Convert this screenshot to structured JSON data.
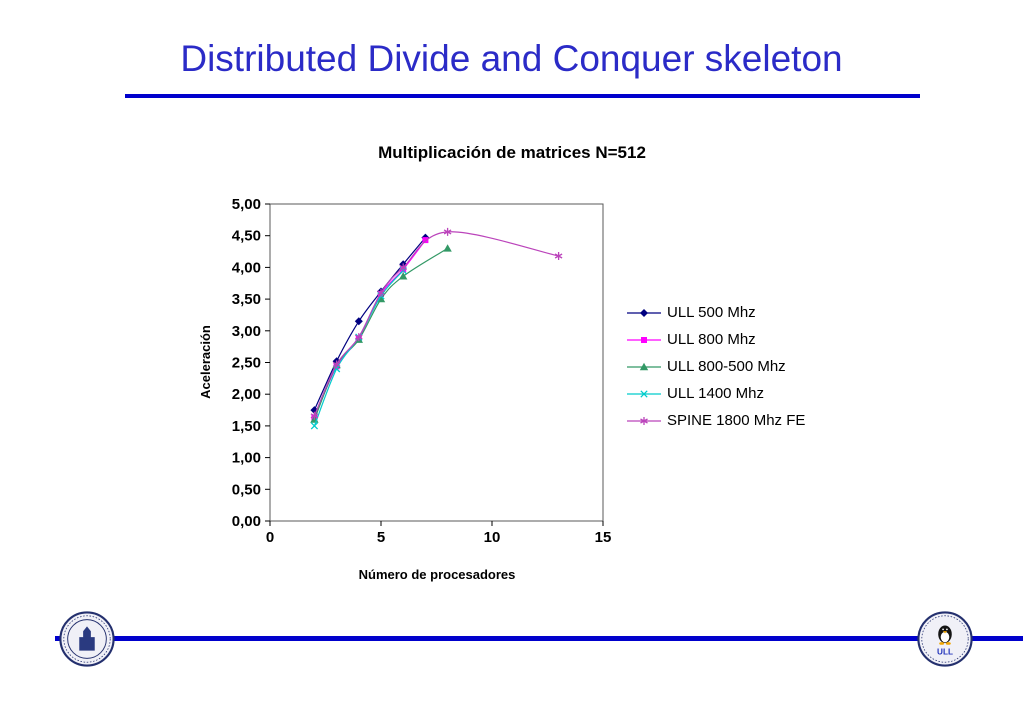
{
  "slide": {
    "title": "Distributed Divide and Conquer skeleton",
    "title_color": "#2b2bc7",
    "rule_color": "#0000cc"
  },
  "chart_data": {
    "type": "line",
    "title": "Multiplicación de matrices N=512",
    "xlabel": "Número de procesadores",
    "ylabel": "Aceleración",
    "xlim": [
      0,
      15
    ],
    "ylim": [
      0,
      5
    ],
    "x_ticks": [
      0,
      5,
      10,
      15
    ],
    "x_tick_labels": [
      "0",
      "5",
      "10",
      "15"
    ],
    "y_ticks": [
      0,
      0.5,
      1,
      1.5,
      2,
      2.5,
      3,
      3.5,
      4,
      4.5,
      5
    ],
    "y_tick_labels": [
      "0,00",
      "0,50",
      "1,00",
      "1,50",
      "2,00",
      "2,50",
      "3,00",
      "3,50",
      "4,00",
      "4,50",
      "5,00"
    ],
    "grid": false,
    "legend_position": "right",
    "series": [
      {
        "name": "ULL 500 Mhz",
        "color": "#000080",
        "marker": "diamond",
        "x": [
          2,
          3,
          4,
          5,
          6,
          7
        ],
        "y": [
          1.75,
          2.52,
          3.15,
          3.62,
          4.05,
          4.47
        ]
      },
      {
        "name": "ULL 800 Mhz",
        "color": "#ff00ff",
        "marker": "square",
        "x": [
          2,
          3,
          4,
          5,
          6,
          7
        ],
        "y": [
          1.63,
          2.44,
          2.88,
          3.58,
          3.97,
          4.43
        ]
      },
      {
        "name": "ULL 800-500 Mhz",
        "color": "#339966",
        "marker": "triangle",
        "x": [
          2,
          3,
          4,
          5,
          6,
          8
        ],
        "y": [
          1.6,
          2.46,
          2.86,
          3.5,
          3.86,
          4.3
        ]
      },
      {
        "name": "ULL 1400 Mhz",
        "color": "#00cccc",
        "marker": "x",
        "x": [
          2,
          3,
          4,
          5,
          6
        ],
        "y": [
          1.5,
          2.4,
          2.9,
          3.55,
          3.95
        ]
      },
      {
        "name": "SPINE 1800 Mhz FE",
        "color": "#bb44bb",
        "marker": "star",
        "x": [
          2,
          3,
          4,
          5,
          6,
          8,
          13
        ],
        "y": [
          1.66,
          2.47,
          2.9,
          3.6,
          4.0,
          4.56,
          4.18
        ]
      }
    ]
  },
  "footer": {
    "left_logo": "university-seal",
    "right_logo": "university-seal-with-tux",
    "right_logo_text": "ULL"
  }
}
